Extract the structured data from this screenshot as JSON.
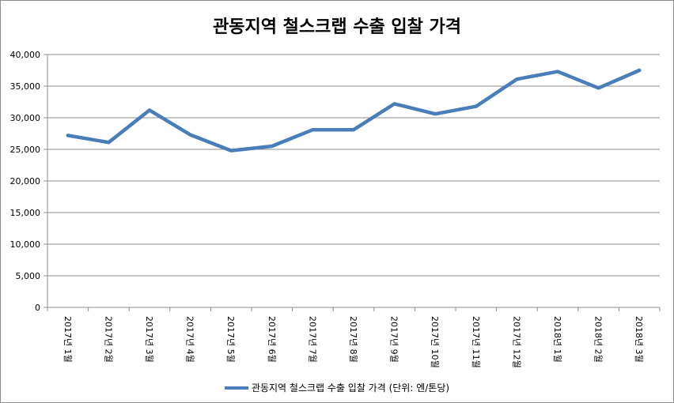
{
  "chart_data": {
    "type": "line",
    "title": "관동지역 철스크랩 수출 입찰 가격",
    "categories": [
      "2017년 1월",
      "2017년 2월",
      "2017년 3월",
      "2017년 4월",
      "2017년 5월",
      "2017년 6월",
      "2017년 7월",
      "2017년 8월",
      "2017년 9월",
      "2017년 10월",
      "2017년 11월",
      "2017년 12월",
      "2018년 1월",
      "2018년 2월",
      "2018년 3월"
    ],
    "series": [
      {
        "name": "관동지역 철스크랩 수출 입찰 가격 (단위: 엔/톤당)",
        "values": [
          27200,
          26100,
          31200,
          27300,
          24800,
          25500,
          28100,
          28100,
          32200,
          30600,
          31800,
          36100,
          37300,
          34700,
          37500
        ],
        "color": "#4a7ebb"
      }
    ],
    "y_ticks": [
      "0",
      "5,000",
      "10,000",
      "15,000",
      "20,000",
      "25,000",
      "30,000",
      "35,000",
      "40,000"
    ],
    "ylim": [
      0,
      40000
    ],
    "xlabel": "",
    "ylabel": "",
    "grid": true,
    "legend_position": "bottom"
  }
}
